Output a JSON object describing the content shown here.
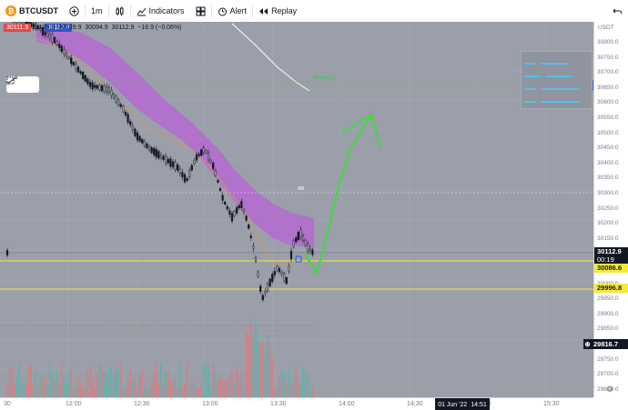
{
  "toolbar": {
    "symbol": "BTCUSDT",
    "interval": "1m",
    "indicators_label": "Indicators",
    "alert_label": "Alert",
    "replay_label": "Replay"
  },
  "legend": {
    "bid": "30111.9",
    "spread": "0.1",
    "ask": "30112.0",
    "ohlc": "30129.9  30129.9  30094.9  30112.9  −16.9 (−0.06%)"
  },
  "price_axis": {
    "currency": "USDT",
    "ticks": [
      "30800.0",
      "30750.0",
      "30700.0",
      "30650.0",
      "30600.0",
      "30550.0",
      "30500.0",
      "30450.0",
      "30400.0",
      "30350.0",
      "30300.0",
      "30250.0",
      "30200.0",
      "30150.0",
      "30100.0",
      "30050.0",
      "30000.0",
      "29950.0",
      "29900.0",
      "29850.0",
      "29800.0",
      "29750.0",
      "29700.0",
      "29650.0"
    ],
    "current_price": "30112.9",
    "countdown": "00:19",
    "line1_price": "30086.6",
    "line2_price": "29996.8",
    "crosshair_price": "29816.7"
  },
  "time_axis": {
    "ticks": [
      "30",
      "12:00",
      "12:30",
      "13:00",
      "13:30",
      "14:00",
      "14:30",
      "15:00",
      "15:30"
    ],
    "cursor_label": "01 Jun '22",
    "cursor_time": "14:51"
  },
  "chart_labels": {
    "mid_label": "MB",
    "green_line_label": "VPocus (L)"
  },
  "colors": {
    "chart_bg": "#9a9fa9",
    "candle": "#131722",
    "band": "#b56ad1",
    "arrow": "#3cdc3c",
    "yellow_line": "#f5e93a",
    "white_line": "#ffffff"
  }
}
